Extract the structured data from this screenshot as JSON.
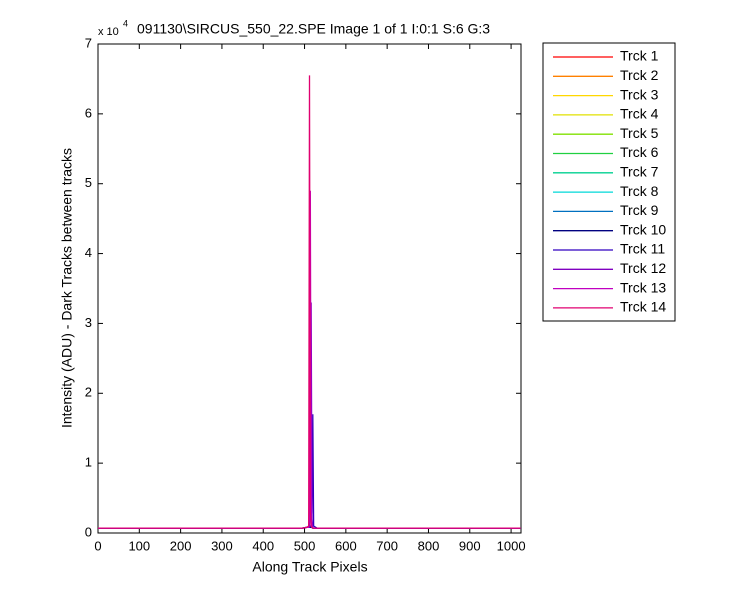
{
  "chart_data": {
    "type": "line",
    "title": "091130\\SIRCUS_550_22.SPE  Image 1 of 1  I:0:1  S:6  G:3",
    "y_multiplier": "x 10",
    "y_exponent": "4",
    "xlabel": "Along Track Pixels",
    "ylabel": "Intensity (ADU) - Dark Tracks between tracks",
    "x": [
      0,
      495,
      505,
      510,
      512,
      514,
      516,
      518,
      520,
      522,
      530,
      1023
    ],
    "xlim": [
      0,
      1024
    ],
    "xticks": [
      0,
      100,
      200,
      300,
      400,
      500,
      600,
      700,
      800,
      900,
      1000
    ],
    "ylim": [
      0,
      7
    ],
    "yticks": [
      0,
      1,
      2,
      3,
      4,
      5,
      6,
      7
    ],
    "legend": "outside-right",
    "series": [
      {
        "name": "Trck 1",
        "color": "#ff0000",
        "values": [
          0.07,
          0.07,
          0.08,
          0.08,
          0.08,
          0.08,
          0.08,
          0.08,
          0.07,
          0.07,
          0.07,
          0.07
        ]
      },
      {
        "name": "Trck 2",
        "color": "#ff8000",
        "values": [
          0.07,
          0.07,
          0.08,
          0.08,
          0.08,
          0.08,
          0.08,
          0.08,
          0.07,
          0.07,
          0.07,
          0.07
        ]
      },
      {
        "name": "Trck 3",
        "color": "#ffd700",
        "values": [
          0.07,
          0.07,
          0.08,
          0.08,
          0.08,
          0.08,
          0.08,
          0.08,
          0.07,
          0.07,
          0.07,
          0.07
        ]
      },
      {
        "name": "Trck 4",
        "color": "#e0e000",
        "values": [
          0.07,
          0.07,
          0.08,
          0.08,
          0.08,
          0.08,
          0.08,
          0.08,
          0.07,
          0.07,
          0.07,
          0.07
        ]
      },
      {
        "name": "Trck 5",
        "color": "#80e000",
        "values": [
          0.07,
          0.07,
          0.08,
          0.08,
          0.08,
          0.08,
          0.08,
          0.08,
          0.07,
          0.07,
          0.07,
          0.07
        ]
      },
      {
        "name": "Trck 6",
        "color": "#20d040",
        "values": [
          0.07,
          0.07,
          0.08,
          0.08,
          0.08,
          0.08,
          0.08,
          0.08,
          0.07,
          0.07,
          0.07,
          0.07
        ]
      },
      {
        "name": "Trck 7",
        "color": "#00d090",
        "values": [
          0.07,
          0.07,
          0.08,
          0.08,
          0.08,
          0.08,
          0.08,
          0.08,
          0.07,
          0.07,
          0.07,
          0.07
        ]
      },
      {
        "name": "Trck 8",
        "color": "#00d8d8",
        "values": [
          0.07,
          0.07,
          0.08,
          0.08,
          0.08,
          0.08,
          0.08,
          0.08,
          0.07,
          0.07,
          0.07,
          0.07
        ]
      },
      {
        "name": "Trck 9",
        "color": "#0070c0",
        "values": [
          0.07,
          0.07,
          0.08,
          0.08,
          0.08,
          0.08,
          0.08,
          0.08,
          0.07,
          0.07,
          0.07,
          0.07
        ]
      },
      {
        "name": "Trck 10",
        "color": "#000080",
        "values": [
          0.07,
          0.07,
          0.08,
          0.08,
          0.08,
          0.08,
          0.08,
          0.08,
          0.07,
          0.07,
          0.07,
          0.07
        ]
      },
      {
        "name": "Trck 11",
        "color": "#3000c0",
        "values": [
          0.07,
          0.07,
          0.08,
          0.08,
          0.08,
          0.1,
          0.1,
          0.3,
          1.7,
          0.1,
          0.07,
          0.07
        ]
      },
      {
        "name": "Trck 12",
        "color": "#8000c0",
        "values": [
          0.07,
          0.07,
          0.08,
          0.08,
          0.1,
          0.3,
          3.3,
          0.2,
          0.08,
          0.07,
          0.07,
          0.07
        ]
      },
      {
        "name": "Trck 13",
        "color": "#c000c0",
        "values": [
          0.07,
          0.07,
          0.08,
          0.08,
          0.2,
          4.9,
          0.2,
          0.08,
          0.07,
          0.07,
          0.07,
          0.07
        ]
      },
      {
        "name": "Trck 14",
        "color": "#e00070",
        "values": [
          0.07,
          0.07,
          0.08,
          0.1,
          6.55,
          0.3,
          0.1,
          0.08,
          0.07,
          0.07,
          0.07,
          0.07
        ]
      }
    ]
  }
}
